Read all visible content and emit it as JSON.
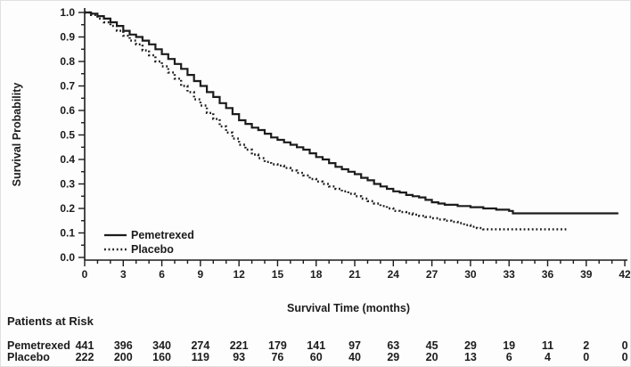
{
  "figure": {
    "background": "#fdfdfd",
    "ink_color": "#1c1c1c"
  },
  "chart_data": {
    "type": "line",
    "subtype": "kaplan-meier-step",
    "title": "",
    "xlabel": "Survival Time (months)",
    "ylabel": "Survival Probability",
    "xlim": [
      0,
      42
    ],
    "ylim": [
      0.0,
      1.0
    ],
    "x_ticks": [
      0,
      3,
      6,
      9,
      12,
      15,
      18,
      21,
      24,
      27,
      30,
      33,
      36,
      39,
      42
    ],
    "x_minor_tick_interval_months": 1,
    "y_tick_labels": [
      "1.0",
      "0.9",
      "0.8",
      "0.7",
      "0.6",
      "0.5",
      "0.4",
      "0.3",
      "0.2",
      "0.1",
      "0.0"
    ],
    "y_minor_tick_interval": 0.05,
    "grid": "off",
    "legend_position": "inside-lower-left",
    "series": [
      {
        "name": "Pemetrexed",
        "style": "solid",
        "color": "#1c1c1c",
        "points": [
          [
            0,
            1.0
          ],
          [
            0.5,
            0.995
          ],
          [
            1,
            0.985
          ],
          [
            1.5,
            0.975
          ],
          [
            2,
            0.96
          ],
          [
            2.5,
            0.945
          ],
          [
            3,
            0.925
          ],
          [
            3.5,
            0.91
          ],
          [
            4,
            0.9
          ],
          [
            4.5,
            0.885
          ],
          [
            5,
            0.87
          ],
          [
            5.5,
            0.85
          ],
          [
            6,
            0.83
          ],
          [
            6.5,
            0.81
          ],
          [
            7,
            0.79
          ],
          [
            7.5,
            0.77
          ],
          [
            8,
            0.745
          ],
          [
            8.5,
            0.72
          ],
          [
            9,
            0.7
          ],
          [
            9.5,
            0.675
          ],
          [
            10,
            0.655
          ],
          [
            10.5,
            0.63
          ],
          [
            11,
            0.61
          ],
          [
            11.5,
            0.585
          ],
          [
            12,
            0.56
          ],
          [
            12.5,
            0.545
          ],
          [
            13,
            0.53
          ],
          [
            13.5,
            0.52
          ],
          [
            14,
            0.505
          ],
          [
            14.5,
            0.49
          ],
          [
            15,
            0.48
          ],
          [
            15.5,
            0.47
          ],
          [
            16,
            0.46
          ],
          [
            16.5,
            0.45
          ],
          [
            17,
            0.44
          ],
          [
            17.5,
            0.425
          ],
          [
            18,
            0.41
          ],
          [
            18.5,
            0.4
          ],
          [
            19,
            0.385
          ],
          [
            19.5,
            0.37
          ],
          [
            20,
            0.36
          ],
          [
            20.5,
            0.35
          ],
          [
            21,
            0.34
          ],
          [
            21.5,
            0.325
          ],
          [
            22,
            0.315
          ],
          [
            22.5,
            0.3
          ],
          [
            23,
            0.29
          ],
          [
            23.5,
            0.28
          ],
          [
            24,
            0.27
          ],
          [
            24.5,
            0.265
          ],
          [
            25,
            0.255
          ],
          [
            25.5,
            0.25
          ],
          [
            26,
            0.245
          ],
          [
            26.5,
            0.235
          ],
          [
            27,
            0.225
          ],
          [
            27.5,
            0.22
          ],
          [
            28,
            0.215
          ],
          [
            29,
            0.21
          ],
          [
            30,
            0.205
          ],
          [
            31,
            0.2
          ],
          [
            32,
            0.195
          ],
          [
            33,
            0.19
          ],
          [
            33.3,
            0.18
          ],
          [
            41.5,
            0.18
          ]
        ]
      },
      {
        "name": "Placebo",
        "style": "dotted",
        "color": "#1c1c1c",
        "points": [
          [
            0,
            1.0
          ],
          [
            0.5,
            0.99
          ],
          [
            1,
            0.975
          ],
          [
            1.5,
            0.96
          ],
          [
            2,
            0.945
          ],
          [
            2.5,
            0.925
          ],
          [
            3,
            0.905
          ],
          [
            3.5,
            0.885
          ],
          [
            4,
            0.87
          ],
          [
            4.5,
            0.845
          ],
          [
            5,
            0.825
          ],
          [
            5.5,
            0.8
          ],
          [
            6,
            0.78
          ],
          [
            6.5,
            0.755
          ],
          [
            7,
            0.73
          ],
          [
            7.5,
            0.7
          ],
          [
            8,
            0.675
          ],
          [
            8.5,
            0.645
          ],
          [
            9,
            0.62
          ],
          [
            9.5,
            0.59
          ],
          [
            10,
            0.565
          ],
          [
            10.5,
            0.535
          ],
          [
            11,
            0.51
          ],
          [
            11.5,
            0.485
          ],
          [
            12,
            0.46
          ],
          [
            12.5,
            0.44
          ],
          [
            13,
            0.42
          ],
          [
            13.5,
            0.405
          ],
          [
            14,
            0.39
          ],
          [
            14.5,
            0.38
          ],
          [
            15,
            0.375
          ],
          [
            15.5,
            0.365
          ],
          [
            16,
            0.355
          ],
          [
            16.5,
            0.345
          ],
          [
            17,
            0.335
          ],
          [
            17.5,
            0.32
          ],
          [
            18,
            0.31
          ],
          [
            18.5,
            0.3
          ],
          [
            19,
            0.29
          ],
          [
            19.5,
            0.28
          ],
          [
            20,
            0.27
          ],
          [
            20.5,
            0.26
          ],
          [
            21,
            0.25
          ],
          [
            21.5,
            0.24
          ],
          [
            22,
            0.23
          ],
          [
            22.5,
            0.22
          ],
          [
            23,
            0.21
          ],
          [
            23.5,
            0.2
          ],
          [
            24,
            0.19
          ],
          [
            24.5,
            0.185
          ],
          [
            25,
            0.18
          ],
          [
            25.5,
            0.175
          ],
          [
            26,
            0.17
          ],
          [
            26.5,
            0.165
          ],
          [
            27,
            0.16
          ],
          [
            27.5,
            0.155
          ],
          [
            28,
            0.15
          ],
          [
            28.5,
            0.145
          ],
          [
            29,
            0.14
          ],
          [
            29.5,
            0.132
          ],
          [
            30,
            0.125
          ],
          [
            30.5,
            0.12
          ],
          [
            31,
            0.115
          ],
          [
            37.5,
            0.115
          ]
        ]
      }
    ]
  },
  "at_risk": {
    "heading": "Patients at Risk",
    "months": [
      0,
      3,
      6,
      9,
      12,
      15,
      18,
      21,
      24,
      27,
      30,
      33,
      36,
      39,
      42
    ],
    "rows": [
      {
        "label": "Pemetrexed",
        "counts": [
          441,
          396,
          340,
          274,
          221,
          179,
          141,
          97,
          63,
          45,
          29,
          19,
          11,
          2,
          0
        ]
      },
      {
        "label": "Placebo",
        "counts": [
          222,
          200,
          160,
          119,
          93,
          76,
          60,
          40,
          29,
          20,
          13,
          6,
          4,
          0,
          0
        ]
      }
    ]
  }
}
